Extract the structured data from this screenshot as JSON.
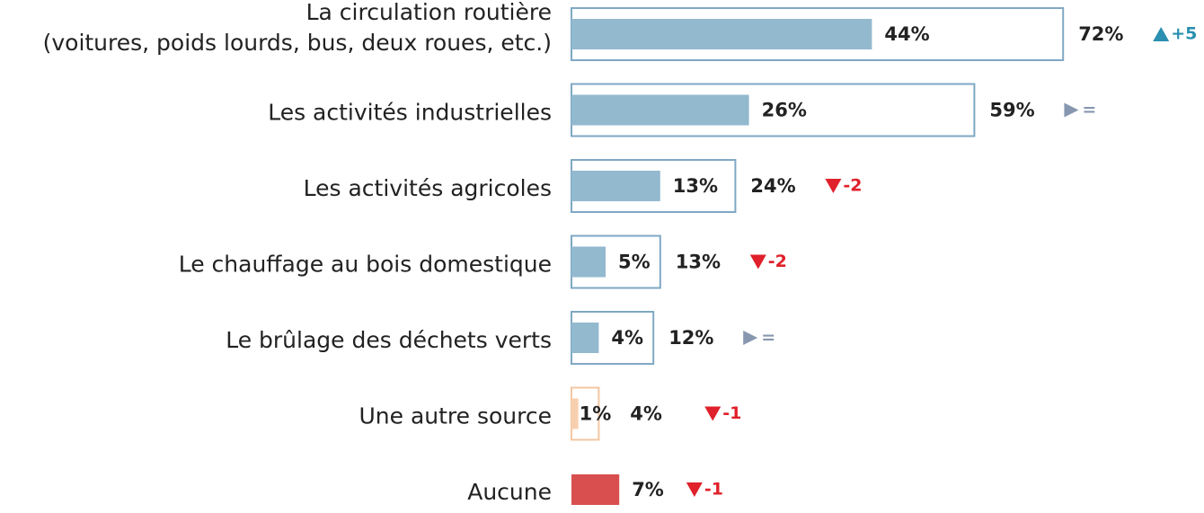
{
  "chart_data": {
    "type": "bar",
    "categories": [
      [
        "La circulation routière",
        "(voitures, poids lourds, bus, deux roues, etc.)"
      ],
      [
        "Les activités industrielles"
      ],
      [
        "Les activités agricoles"
      ],
      [
        "Le chauffage au bois domestique"
      ],
      [
        "Le brûlage des déchets verts"
      ],
      [
        "Une autre source"
      ],
      [
        "Aucune"
      ]
    ],
    "series": [
      {
        "kind": "filled",
        "colors": [
          "#93b9cf",
          "#93b9cf",
          "#93b9cf",
          "#93b9cf",
          "#93b9cf",
          "#f8cfae",
          "#d94f4f"
        ],
        "values": [
          44,
          26,
          13,
          5,
          4,
          1,
          7
        ],
        "value_labels": [
          "44%",
          "26%",
          "13%",
          "5%",
          "4%",
          "1%",
          "7%"
        ]
      },
      {
        "kind": "outline",
        "colors": [
          "#7fa8c4",
          "#7fa8c4",
          "#7fa8c4",
          "#7fa8c4",
          "#7fa8c4",
          "#f4c7a2",
          null
        ],
        "values": [
          72,
          59,
          24,
          13,
          12,
          4,
          null
        ],
        "value_labels": [
          "72%",
          "59%",
          "24%",
          "13%",
          "12%",
          "4%",
          null
        ]
      }
    ],
    "changes": {
      "values": [
        5,
        0,
        -2,
        -2,
        0,
        -1,
        -1
      ],
      "value_labels": [
        "+5",
        "=",
        "-2",
        "-2",
        "=",
        "-1",
        "-1"
      ],
      "colors": {
        "up": "#2a8fb0",
        "flat": "#8797b0",
        "down": "#e0202a"
      }
    }
  }
}
